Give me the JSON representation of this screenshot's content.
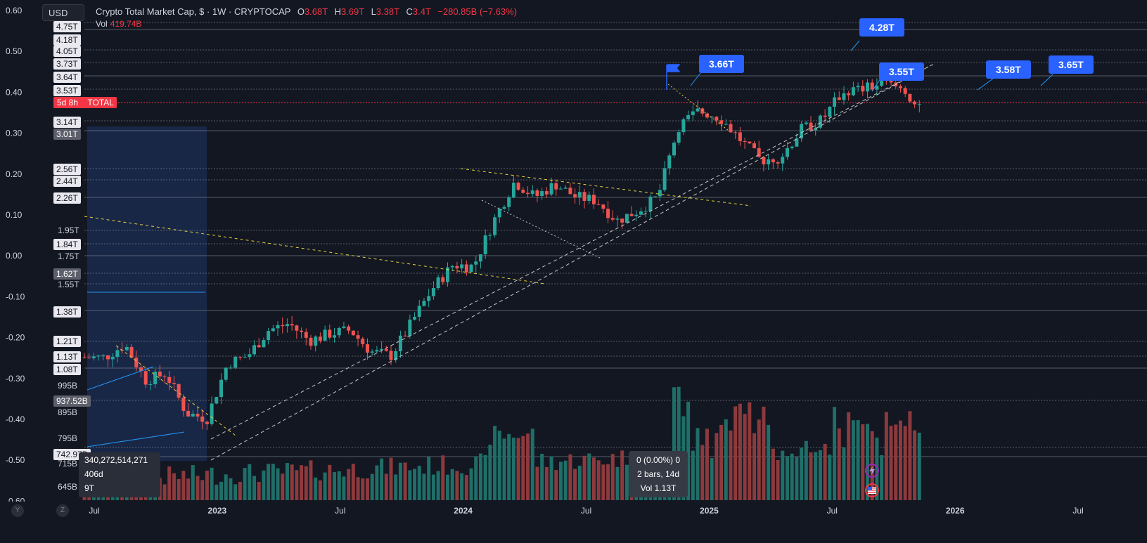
{
  "header": {
    "currency": "USD",
    "title": "Crypto Total Market Cap, $ · 1W · CRYPTOCAP",
    "ohlc": [
      {
        "k": "O",
        "v": "3.68T"
      },
      {
        "k": "H",
        "v": "3.69T"
      },
      {
        "k": "L",
        "v": "3.38T"
      },
      {
        "k": "C",
        "v": "3.4T"
      }
    ],
    "change": "−280.85B (−7.63%)",
    "vol_label": "Vol",
    "vol_value": "419.74B"
  },
  "left_axis": {
    "ticks": [
      "0.60",
      "0.50",
      "0.40",
      "0.30",
      "0.20",
      "0.10",
      "0.00",
      "-0.10",
      "-0.20",
      "-0.30",
      "-0.40",
      "-0.50",
      "-0.60"
    ]
  },
  "price_tags": [
    {
      "text": "4.75T",
      "style": "light"
    },
    {
      "text": "4.18T",
      "style": "light"
    },
    {
      "text": "4.05T",
      "style": "light"
    },
    {
      "text": "3.73T",
      "style": "light"
    },
    {
      "text": "3.64T",
      "style": "light"
    },
    {
      "text": "3.53T",
      "style": "light"
    },
    {
      "text": "3.14T",
      "style": "light"
    },
    {
      "text": "3.01T",
      "style": "grey"
    },
    {
      "text": "2.56T",
      "style": "light"
    },
    {
      "text": "2.44T",
      "style": "light"
    },
    {
      "text": "2.26T",
      "style": "light"
    },
    {
      "text": "1.95T",
      "style": "plain"
    },
    {
      "text": "1.84T",
      "style": "light"
    },
    {
      "text": "1.75T",
      "style": "plain"
    },
    {
      "text": "1.62T",
      "style": "grey"
    },
    {
      "text": "1.55T",
      "style": "plain"
    },
    {
      "text": "1.38T",
      "style": "light"
    },
    {
      "text": "1.21T",
      "style": "light"
    },
    {
      "text": "1.13T",
      "style": "light"
    },
    {
      "text": "1.08T",
      "style": "light"
    },
    {
      "text": "995B",
      "style": "plain"
    },
    {
      "text": "937.52B",
      "style": "grey"
    },
    {
      "text": "895B",
      "style": "plain"
    },
    {
      "text": "795B",
      "style": "plain"
    },
    {
      "text": "742.97B",
      "style": "light"
    },
    {
      "text": "715B",
      "style": "plain"
    },
    {
      "text": "645B",
      "style": "plain"
    }
  ],
  "countdown_tag": {
    "time": "5d 8h",
    "label": "TOTAL"
  },
  "callouts": [
    "3.66T",
    "4.28T",
    "3.55T",
    "3.58T",
    "3.65T"
  ],
  "x_axis": {
    "labels": [
      "Jul",
      "2023",
      "Jul",
      "2024",
      "Jul",
      "2025",
      "Jul",
      "2026",
      "Jul"
    ]
  },
  "measure_tooltip": {
    "line1": "340,272,514,271",
    "line2": "406d",
    "line3": "9T"
  },
  "ruler_tooltip": {
    "line1": "0 (0.00%) 0",
    "line2": "2 bars, 14d",
    "line3": "Vol 1.13T"
  },
  "bottom_buttons": {
    "y": "Y",
    "z": "Z"
  },
  "colors": {
    "background": "#131722",
    "up": "#26a69a",
    "down": "#ef5350",
    "accent": "#2962ff",
    "volume_up": "#1f6e68",
    "volume_down": "#8c3a3d"
  },
  "chart_data": {
    "type": "candlestick",
    "title": "Crypto Total Market Cap, $ · 1W · CRYPTOCAP",
    "interval": "1W",
    "unit": "USD trillions",
    "x_range": [
      "2022-06",
      "2026-09"
    ],
    "ylim": [
      0.6,
      4.9
    ],
    "series": [
      {
        "name": "price",
        "monthly_close": [
          {
            "x": "2022-07",
            "v": 1.05
          },
          {
            "x": "2022-08",
            "v": 1.12
          },
          {
            "x": "2022-09",
            "v": 0.94
          },
          {
            "x": "2022-10",
            "v": 0.97
          },
          {
            "x": "2022-11",
            "v": 0.8
          },
          {
            "x": "2022-12",
            "v": 0.78
          },
          {
            "x": "2023-01",
            "v": 1.02
          },
          {
            "x": "2023-02",
            "v": 1.06
          },
          {
            "x": "2023-03",
            "v": 1.2
          },
          {
            "x": "2023-04",
            "v": 1.24
          },
          {
            "x": "2023-05",
            "v": 1.14
          },
          {
            "x": "2023-06",
            "v": 1.18
          },
          {
            "x": "2023-07",
            "v": 1.2
          },
          {
            "x": "2023-08",
            "v": 1.08
          },
          {
            "x": "2023-09",
            "v": 1.06
          },
          {
            "x": "2023-10",
            "v": 1.25
          },
          {
            "x": "2023-11",
            "v": 1.47
          },
          {
            "x": "2023-12",
            "v": 1.65
          },
          {
            "x": "2024-01",
            "v": 1.64
          },
          {
            "x": "2024-02",
            "v": 2.05
          },
          {
            "x": "2024-03",
            "v": 2.48
          },
          {
            "x": "2024-04",
            "v": 2.3
          },
          {
            "x": "2024-05",
            "v": 2.45
          },
          {
            "x": "2024-06",
            "v": 2.3
          },
          {
            "x": "2024-07",
            "v": 2.26
          },
          {
            "x": "2024-08",
            "v": 2.05
          },
          {
            "x": "2024-09",
            "v": 2.15
          },
          {
            "x": "2024-10",
            "v": 2.3
          },
          {
            "x": "2024-11",
            "v": 3.25
          },
          {
            "x": "2024-12",
            "v": 3.5
          },
          {
            "x": "2025-01",
            "v": 3.4
          },
          {
            "x": "2025-02",
            "v": 3.05
          },
          {
            "x": "2025-03",
            "v": 2.75
          },
          {
            "x": "2025-04",
            "v": 2.8
          },
          {
            "x": "2025-05",
            "v": 3.2
          },
          {
            "x": "2025-06",
            "v": 3.35
          },
          {
            "x": "2025-07",
            "v": 3.85
          },
          {
            "x": "2025-08",
            "v": 3.9
          },
          {
            "x": "2025-09",
            "v": 4.0
          },
          {
            "x": "2025-10",
            "v": 3.9
          },
          {
            "x": "2025-11",
            "v": 3.4
          }
        ]
      }
    ],
    "annotations": [
      "3.66T",
      "4.28T",
      "3.55T",
      "3.58T",
      "3.65T"
    ]
  }
}
